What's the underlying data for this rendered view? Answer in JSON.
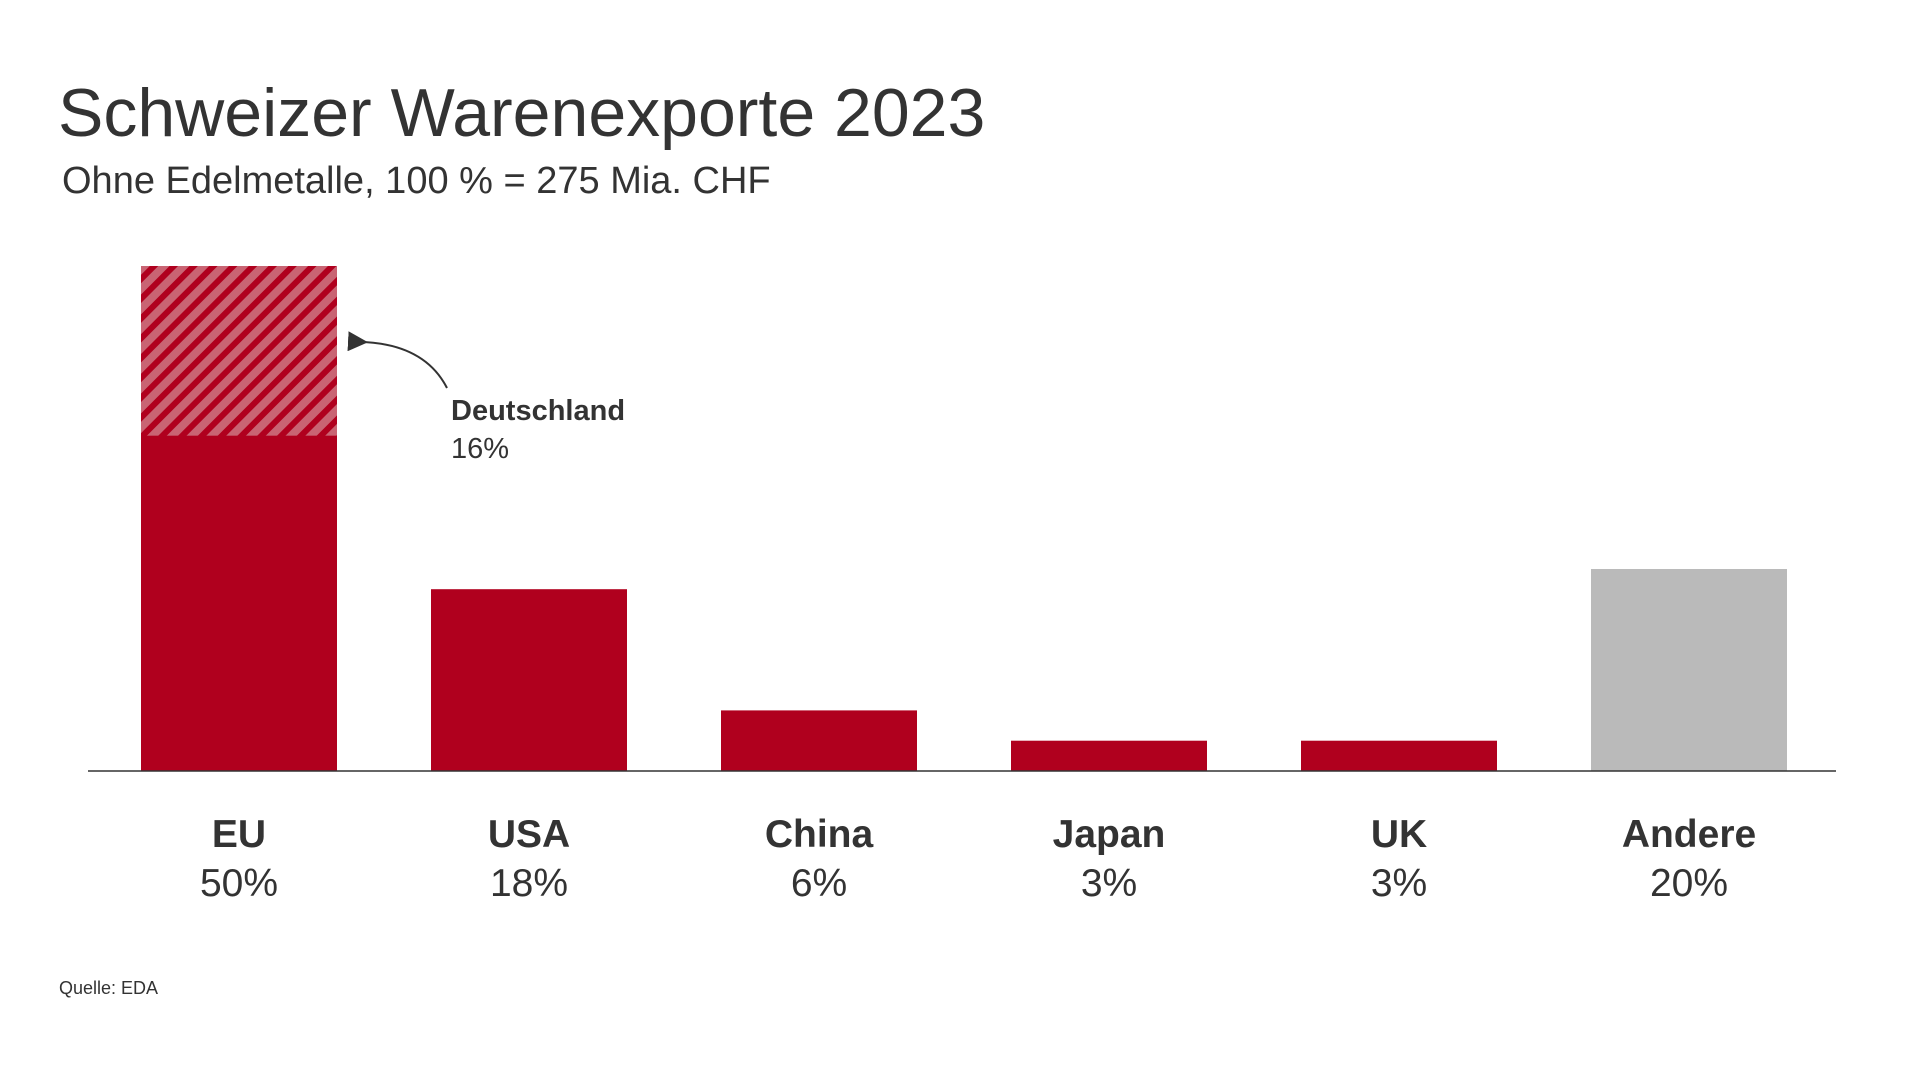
{
  "chart_data": {
    "type": "bar",
    "title": "Schweizer Warenexporte 2023",
    "subtitle": "Ohne Edelmetalle, 100 % = 275 Mia. CHF",
    "categories": [
      "EU",
      "USA",
      "China",
      "Japan",
      "UK",
      "Andere"
    ],
    "values": [
      50,
      18,
      6,
      3,
      3,
      20
    ],
    "value_labels": [
      "50%",
      "18%",
      "6%",
      "3%",
      "3%",
      "20%"
    ],
    "unit": "%",
    "ylim": [
      0,
      50
    ],
    "grid": false,
    "annotation": {
      "category": "EU",
      "label": "Deutschland",
      "value": 16,
      "value_label": "16%",
      "style": "hatched"
    },
    "colors": {
      "main": "#b0001e",
      "hatch_light": "#c96473",
      "other": "#bababa",
      "axis": "#333333"
    },
    "source": "Quelle: EDA"
  }
}
